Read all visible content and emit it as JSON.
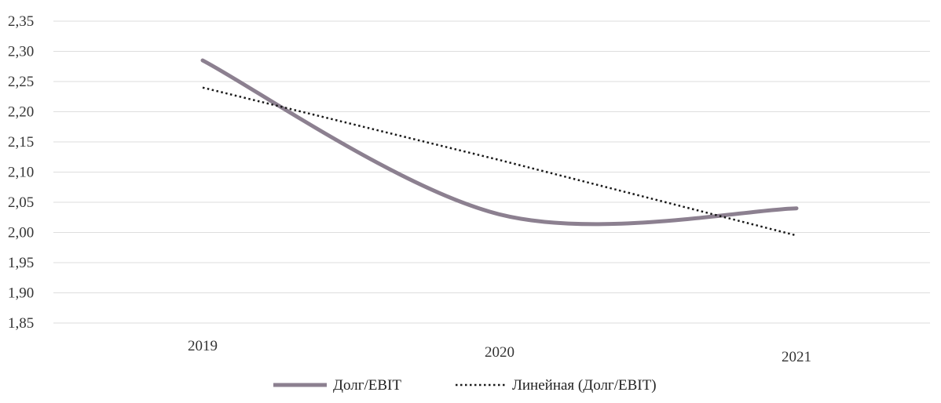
{
  "chart_data": {
    "type": "line",
    "categories": [
      "2019",
      "2020",
      "2021"
    ],
    "series": [
      {
        "name": "Долг/EBIT",
        "values": [
          2.285,
          2.03,
          2.04
        ],
        "color": "#8c8090",
        "style": "solid-smooth"
      },
      {
        "name": "Линейная (Долг/EBIT)",
        "values": [
          2.24,
          2.12,
          1.995
        ],
        "color": "#1a1a1a",
        "style": "dotted"
      }
    ],
    "ylim": [
      1.85,
      2.35
    ],
    "yticks": [
      "2,35",
      "2,30",
      "2,25",
      "2,20",
      "2,15",
      "2,10",
      "2,05",
      "2,00",
      "1,95",
      "1,90",
      "1,85"
    ],
    "grid": true,
    "legend_position": "bottom-center"
  }
}
